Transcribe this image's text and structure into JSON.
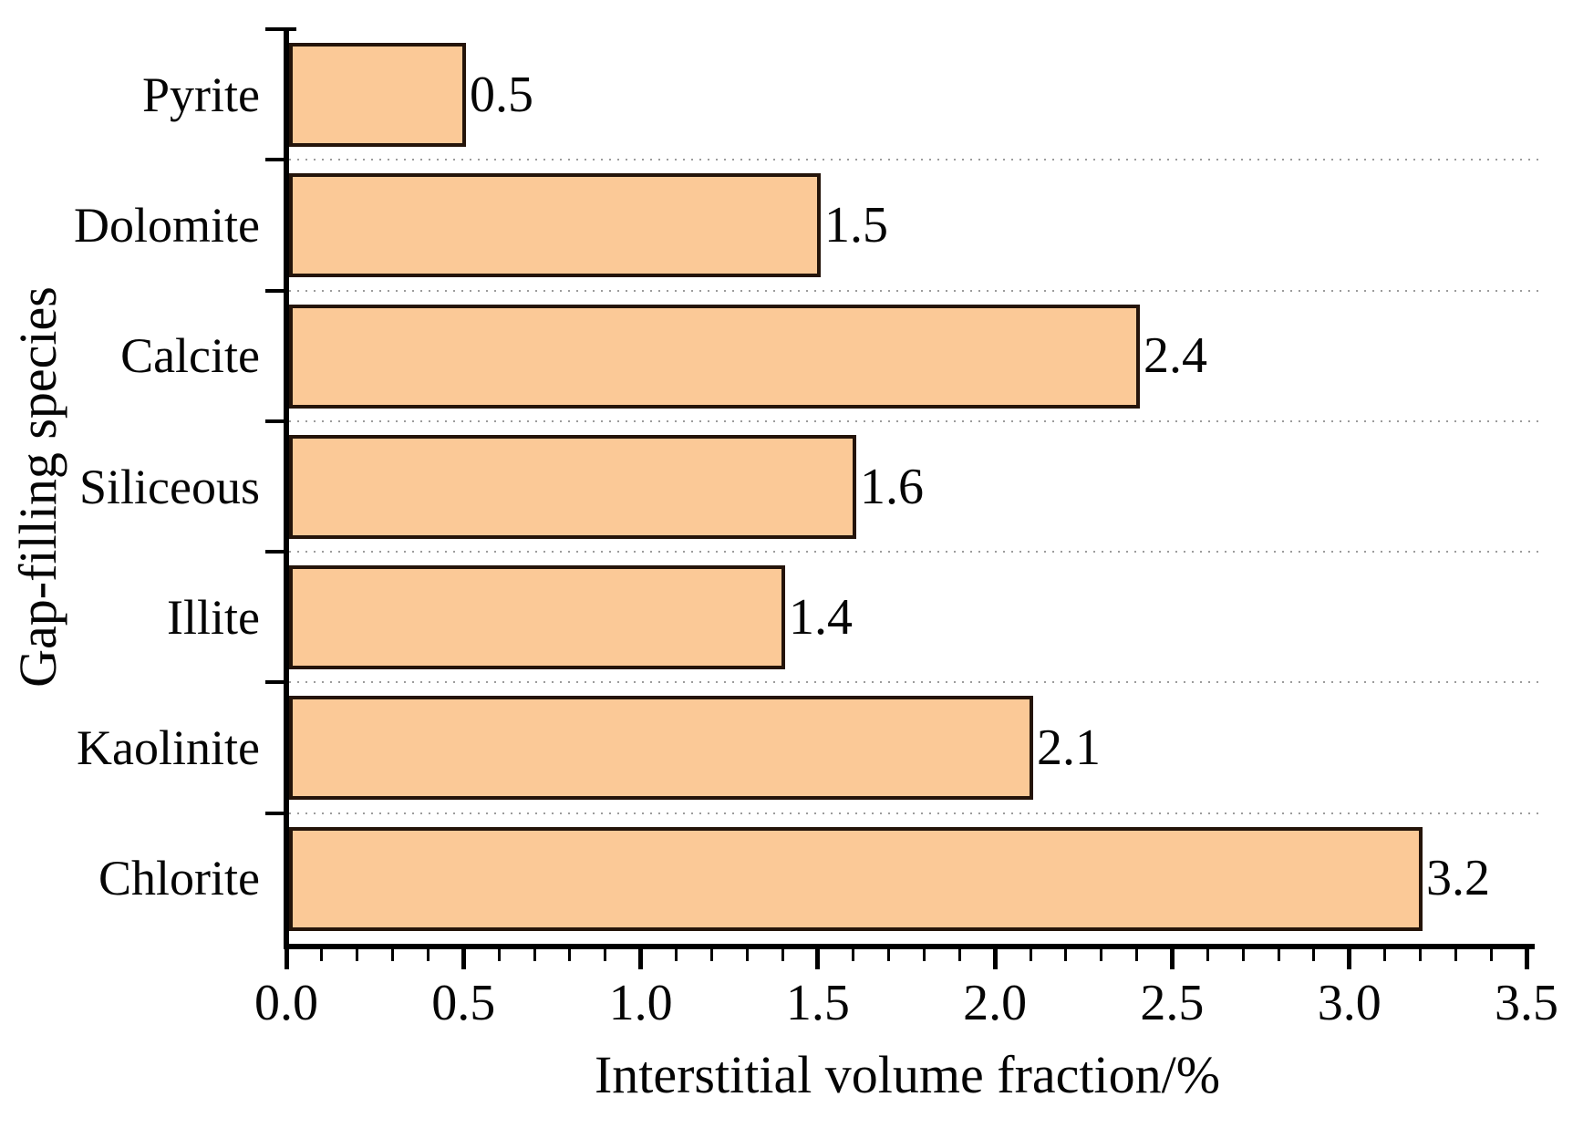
{
  "chart_data": {
    "type": "bar",
    "orientation": "horizontal",
    "title": "",
    "xlabel": "Interstitial volume fraction/%",
    "ylabel": "Gap-filling species",
    "categories": [
      "Pyrite",
      "Dolomite",
      "Calcite",
      "Siliceous",
      "Illite",
      "Kaolinite",
      "Chlorite"
    ],
    "values": [
      0.5,
      1.5,
      2.4,
      1.6,
      1.4,
      2.1,
      3.2
    ],
    "value_labels": [
      "0.5",
      "1.5",
      "2.4",
      "1.6",
      "1.4",
      "2.1",
      "3.2"
    ],
    "xlim": [
      0,
      3.5
    ],
    "x_tick_labels": [
      "0.0",
      "0.5",
      "1.0",
      "1.5",
      "2.0",
      "2.5",
      "3.0",
      "3.5"
    ],
    "x_major_tick_step": 0.5,
    "x_minor_tick_step": 0.1,
    "grid": "dotted horizontal lines at category boundaries",
    "legend_position": "none",
    "colors": {
      "bar_fill": "#FBC997",
      "bar_border": "#24140A",
      "axis": "#000000",
      "gridline": "#9C9C9C",
      "text": "#050505"
    }
  }
}
